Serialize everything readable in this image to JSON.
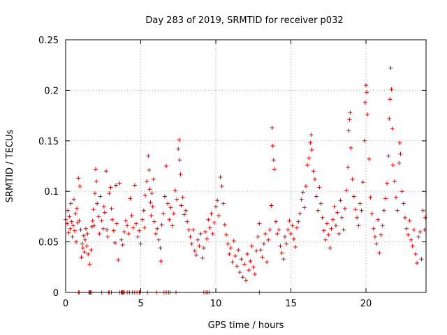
{
  "chart_data": {
    "type": "scatter",
    "title": "Day 283 of 2019, SRMTID for receiver p032",
    "xlabel": "GPS time / hours",
    "ylabel": "SRMTID / TECUs",
    "xlim": [
      0,
      24
    ],
    "ylim": [
      0,
      0.25
    ],
    "grid": true,
    "xticks": [
      0,
      5,
      10,
      15,
      20
    ],
    "xtick_labels": [
      "0",
      "5",
      "10",
      "15",
      "20"
    ],
    "yticks": [
      0,
      0.05,
      0.1,
      0.15,
      0.2,
      0.25
    ],
    "ytick_labels": [
      "0",
      "0.05",
      "0.1",
      "0.15",
      "0.2",
      "0.25"
    ],
    "marker": "+",
    "color": "#e00000",
    "series": [
      {
        "name": "SRMTID",
        "points": [
          [
            0.0,
            0.072
          ],
          [
            0.1,
            0.068
          ],
          [
            0.15,
            0.081
          ],
          [
            0.2,
            0.059
          ],
          [
            0.25,
            0.075
          ],
          [
            0.3,
            0.063
          ],
          [
            0.35,
            0.088
          ],
          [
            0.4,
            0.07
          ],
          [
            0.45,
            0.055
          ],
          [
            0.5,
            0.066
          ],
          [
            0.55,
            0.092
          ],
          [
            0.6,
            0.061
          ],
          [
            0.65,
            0.078
          ],
          [
            0.7,
            0.05
          ],
          [
            0.75,
            0.083
          ],
          [
            0.8,
            0.069
          ],
          [
            0.85,
            0.113
          ],
          [
            0.9,
            0.071
          ],
          [
            0.95,
            0.105
          ],
          [
            1.0,
            0.062
          ],
          [
            1.05,
            0.035
          ],
          [
            1.1,
            0.048
          ],
          [
            1.15,
            0.044
          ],
          [
            1.2,
            0.056
          ],
          [
            1.25,
            0.04
          ],
          [
            1.3,
            0.052
          ],
          [
            1.35,
            0.063
          ],
          [
            1.4,
            0.046
          ],
          [
            1.45,
            0.058
          ],
          [
            1.5,
            0.038
          ],
          [
            1.6,
            0.028
          ],
          [
            1.7,
            0.042
          ],
          [
            1.75,
            0.065
          ],
          [
            1.8,
            0.071
          ],
          [
            1.85,
            0.082
          ],
          [
            1.9,
            0.066
          ],
          [
            1.95,
            0.098
          ],
          [
            2.0,
            0.122
          ],
          [
            2.05,
            0.11
          ],
          [
            2.1,
            0.088
          ],
          [
            2.2,
            0.075
          ],
          [
            2.25,
            0.058
          ],
          [
            2.3,
            0.095
          ],
          [
            2.4,
            0.071
          ],
          [
            2.5,
            0.063
          ],
          [
            2.55,
            0.085
          ],
          [
            2.6,
            0.079
          ],
          [
            2.7,
            0.12
          ],
          [
            2.75,
            0.062
          ],
          [
            2.8,
            0.055
          ],
          [
            2.9,
            0.098
          ],
          [
            3.0,
            0.104
          ],
          [
            3.05,
            0.083
          ],
          [
            3.1,
            0.072
          ],
          [
            3.2,
            0.061
          ],
          [
            3.3,
            0.049
          ],
          [
            3.35,
            0.106
          ],
          [
            3.4,
            0.068
          ],
          [
            3.5,
            0.032
          ],
          [
            3.6,
            0.108
          ],
          [
            3.7,
            0.052
          ],
          [
            3.8,
            0.047
          ],
          [
            3.9,
            0.06
          ],
          [
            4.0,
            0.071
          ],
          [
            4.1,
            0.066
          ],
          [
            4.2,
            0.058
          ],
          [
            4.3,
            0.093
          ],
          [
            4.4,
            0.076
          ],
          [
            4.5,
            0.064
          ],
          [
            4.6,
            0.106
          ],
          [
            4.7,
            0.068
          ],
          [
            4.8,
            0.055
          ],
          [
            4.9,
            0.061
          ],
          [
            5.0,
            0.048
          ],
          [
            5.1,
            0.072
          ],
          [
            5.2,
            0.081
          ],
          [
            5.25,
            0.064
          ],
          [
            5.3,
            0.096
          ],
          [
            5.4,
            0.11
          ],
          [
            5.5,
            0.135
          ],
          [
            5.55,
            0.121
          ],
          [
            5.6,
            0.102
          ],
          [
            5.65,
            0.089
          ],
          [
            5.7,
            0.076
          ],
          [
            5.75,
            0.098
          ],
          [
            5.8,
            0.085
          ],
          [
            5.85,
            0.112
          ],
          [
            5.9,
            0.07
          ],
          [
            6.0,
            0.058
          ],
          [
            6.1,
            0.063
          ],
          [
            6.2,
            0.052
          ],
          [
            6.3,
            0.044
          ],
          [
            6.35,
            0.031
          ],
          [
            6.4,
            0.067
          ],
          [
            6.5,
            0.078
          ],
          [
            6.6,
            0.095
          ],
          [
            6.7,
            0.125
          ],
          [
            6.8,
            0.088
          ],
          [
            6.9,
            0.072
          ],
          [
            7.0,
            0.084
          ],
          [
            7.1,
            0.066
          ],
          [
            7.2,
            0.078
          ],
          [
            7.3,
            0.101
          ],
          [
            7.4,
            0.092
          ],
          [
            7.5,
            0.142
          ],
          [
            7.55,
            0.151
          ],
          [
            7.6,
            0.131
          ],
          [
            7.65,
            0.117
          ],
          [
            7.7,
            0.086
          ],
          [
            7.8,
            0.094
          ],
          [
            7.9,
            0.077
          ],
          [
            8.0,
            0.081
          ],
          [
            8.1,
            0.07
          ],
          [
            8.2,
            0.062
          ],
          [
            8.3,
            0.055
          ],
          [
            8.4,
            0.048
          ],
          [
            8.5,
            0.062
          ],
          [
            8.6,
            0.041
          ],
          [
            8.7,
            0.037
          ],
          [
            8.8,
            0.052
          ],
          [
            8.9,
            0.046
          ],
          [
            9.0,
            0.058
          ],
          [
            9.1,
            0.034
          ],
          [
            9.2,
            0.044
          ],
          [
            9.3,
            0.06
          ],
          [
            9.4,
            0.053
          ],
          [
            9.5,
            0.072
          ],
          [
            9.6,
            0.064
          ],
          [
            9.7,
            0.078
          ],
          [
            9.8,
            0.058
          ],
          [
            9.9,
            0.069
          ],
          [
            10.0,
            0.085
          ],
          [
            10.1,
            0.091
          ],
          [
            10.2,
            0.076
          ],
          [
            10.3,
            0.114
          ],
          [
            10.4,
            0.105
          ],
          [
            10.5,
            0.088
          ],
          [
            10.6,
            0.067
          ],
          [
            10.7,
            0.057
          ],
          [
            10.8,
            0.048
          ],
          [
            10.9,
            0.038
          ],
          [
            11.0,
            0.044
          ],
          [
            11.1,
            0.03
          ],
          [
            11.2,
            0.051
          ],
          [
            11.3,
            0.036
          ],
          [
            11.4,
            0.026
          ],
          [
            11.5,
            0.042
          ],
          [
            11.6,
            0.02
          ],
          [
            11.7,
            0.033
          ],
          [
            11.8,
            0.015
          ],
          [
            11.9,
            0.028
          ],
          [
            12.0,
            0.012
          ],
          [
            12.1,
            0.038
          ],
          [
            12.2,
            0.022
          ],
          [
            12.3,
            0.031
          ],
          [
            12.4,
            0.046
          ],
          [
            12.5,
            0.025
          ],
          [
            12.6,
            0.018
          ],
          [
            12.7,
            0.041
          ],
          [
            12.8,
            0.055
          ],
          [
            12.9,
            0.068
          ],
          [
            13.0,
            0.042
          ],
          [
            13.1,
            0.035
          ],
          [
            13.2,
            0.048
          ],
          [
            13.3,
            0.058
          ],
          [
            13.4,
            0.03
          ],
          [
            13.5,
            0.052
          ],
          [
            13.6,
            0.062
          ],
          [
            13.7,
            0.086
          ],
          [
            13.75,
            0.163
          ],
          [
            13.8,
            0.145
          ],
          [
            13.85,
            0.131
          ],
          [
            13.9,
            0.122
          ],
          [
            14.0,
            0.07
          ],
          [
            14.1,
            0.058
          ],
          [
            14.2,
            0.062
          ],
          [
            14.3,
            0.046
          ],
          [
            14.4,
            0.039
          ],
          [
            14.5,
            0.033
          ],
          [
            14.6,
            0.055
          ],
          [
            14.7,
            0.048
          ],
          [
            14.8,
            0.062
          ],
          [
            14.9,
            0.071
          ],
          [
            15.0,
            0.058
          ],
          [
            15.1,
            0.066
          ],
          [
            15.2,
            0.053
          ],
          [
            15.3,
            0.045
          ],
          [
            15.4,
            0.064
          ],
          [
            15.5,
            0.07
          ],
          [
            15.6,
            0.078
          ],
          [
            15.7,
            0.092
          ],
          [
            15.8,
            0.099
          ],
          [
            15.9,
            0.084
          ],
          [
            16.0,
            0.105
          ],
          [
            16.1,
            0.126
          ],
          [
            16.2,
            0.133
          ],
          [
            16.3,
            0.148
          ],
          [
            16.35,
            0.156
          ],
          [
            16.4,
            0.141
          ],
          [
            16.5,
            0.12
          ],
          [
            16.6,
            0.112
          ],
          [
            16.7,
            0.095
          ],
          [
            16.8,
            0.081
          ],
          [
            16.9,
            0.104
          ],
          [
            17.0,
            0.088
          ],
          [
            17.1,
            0.074
          ],
          [
            17.2,
            0.061
          ],
          [
            17.3,
            0.052
          ],
          [
            17.4,
            0.068
          ],
          [
            17.5,
            0.057
          ],
          [
            17.6,
            0.044
          ],
          [
            17.7,
            0.063
          ],
          [
            17.8,
            0.072
          ],
          [
            17.9,
            0.085
          ],
          [
            18.0,
            0.066
          ],
          [
            18.1,
            0.079
          ],
          [
            18.2,
            0.058
          ],
          [
            18.3,
            0.091
          ],
          [
            18.4,
            0.074
          ],
          [
            18.5,
            0.062
          ],
          [
            18.6,
            0.083
          ],
          [
            18.7,
            0.101
          ],
          [
            18.8,
            0.124
          ],
          [
            18.85,
            0.16
          ],
          [
            18.9,
            0.171
          ],
          [
            18.95,
            0.178
          ],
          [
            19.0,
            0.143
          ],
          [
            19.1,
            0.112
          ],
          [
            19.2,
            0.095
          ],
          [
            19.3,
            0.082
          ],
          [
            19.4,
            0.074
          ],
          [
            19.5,
            0.066
          ],
          [
            19.6,
            0.088
          ],
          [
            19.7,
            0.081
          ],
          [
            19.8,
            0.109
          ],
          [
            19.9,
            0.15
          ],
          [
            19.95,
            0.188
          ],
          [
            20.0,
            0.205
          ],
          [
            20.05,
            0.198
          ],
          [
            20.1,
            0.176
          ],
          [
            20.2,
            0.132
          ],
          [
            20.3,
            0.094
          ],
          [
            20.4,
            0.078
          ],
          [
            20.5,
            0.063
          ],
          [
            20.6,
            0.055
          ],
          [
            20.7,
            0.048
          ],
          [
            20.8,
            0.072
          ],
          [
            20.9,
            0.039
          ],
          [
            21.0,
            0.057
          ],
          [
            21.1,
            0.066
          ],
          [
            21.2,
            0.081
          ],
          [
            21.3,
            0.093
          ],
          [
            21.4,
            0.108
          ],
          [
            21.5,
            0.135
          ],
          [
            21.55,
            0.172
          ],
          [
            21.6,
            0.191
          ],
          [
            21.65,
            0.222
          ],
          [
            21.7,
            0.201
          ],
          [
            21.75,
            0.162
          ],
          [
            21.8,
            0.126
          ],
          [
            21.9,
            0.11
          ],
          [
            22.0,
            0.094
          ],
          [
            22.1,
            0.081
          ],
          [
            22.2,
            0.128
          ],
          [
            22.25,
            0.148
          ],
          [
            22.3,
            0.137
          ],
          [
            22.4,
            0.1
          ],
          [
            22.5,
            0.088
          ],
          [
            22.6,
            0.074
          ],
          [
            22.7,
            0.063
          ],
          [
            22.8,
            0.057
          ],
          [
            22.9,
            0.071
          ],
          [
            23.0,
            0.052
          ],
          [
            23.1,
            0.046
          ],
          [
            23.2,
            0.062
          ],
          [
            23.3,
            0.038
          ],
          [
            23.4,
            0.029
          ],
          [
            23.5,
            0.055
          ],
          [
            23.6,
            0.06
          ],
          [
            23.7,
            0.033
          ],
          [
            23.8,
            0.081
          ],
          [
            23.9,
            0.062
          ],
          [
            23.95,
            0.074
          ]
        ]
      }
    ],
    "zero_flags_x": [
      0.85,
      0.9,
      1.55,
      1.6,
      1.65,
      1.75,
      2.4,
      2.85,
      2.9,
      3.05,
      3.6,
      3.7,
      3.75,
      3.8,
      3.85,
      3.9,
      4.1,
      4.25,
      4.45,
      4.6,
      4.75,
      4.9,
      4.95,
      5.45,
      6.05,
      6.55,
      6.7,
      6.85,
      6.95,
      7.35,
      9.2,
      9.35,
      9.45,
      9.55,
      12.9
    ]
  }
}
